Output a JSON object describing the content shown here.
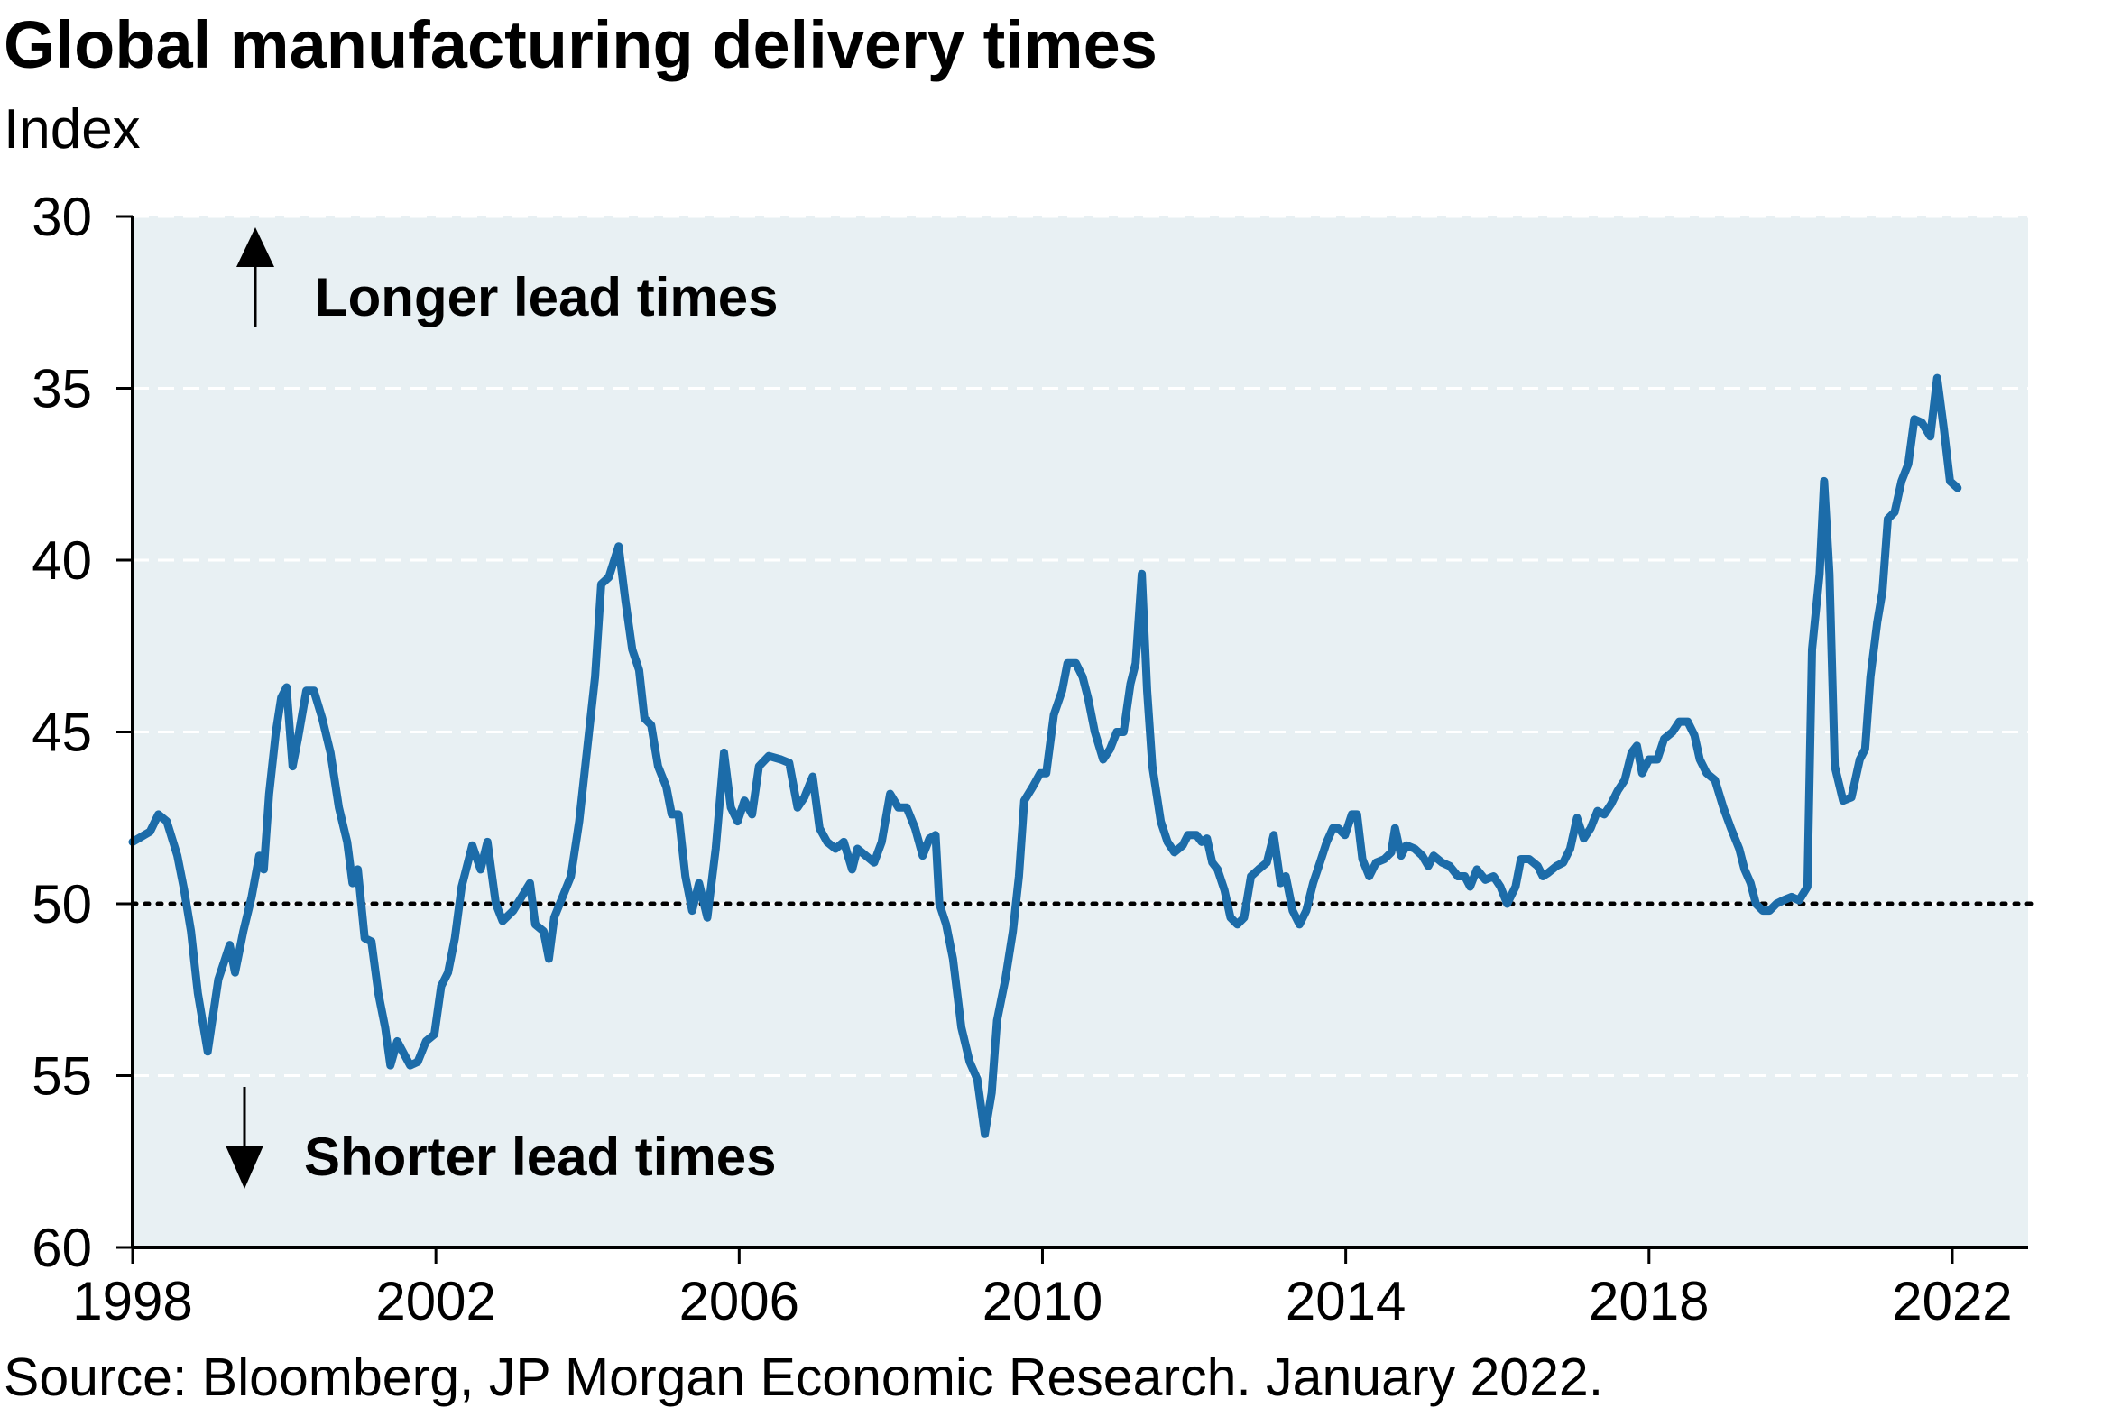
{
  "chart_data": {
    "type": "line",
    "title": "Global manufacturing delivery times",
    "subtitle": "Index",
    "source": "Source: Bloomberg, JP Morgan Economic Research. January 2022.",
    "annotations": [
      "Longer lead times",
      "Shorter lead times"
    ],
    "color": "#1c6ca9",
    "y_inverted": true,
    "grid": true,
    "reference_line": 50,
    "xlim": [
      1998,
      2023
    ],
    "xticks": [
      1998,
      2002,
      2006,
      2010,
      2014,
      2018,
      2022
    ],
    "ylim": [
      30,
      60
    ],
    "yticks": [
      30,
      35,
      40,
      45,
      50,
      55,
      60
    ],
    "x": [
      1998.0,
      1998.23,
      1998.34,
      1998.45,
      1998.59,
      1998.68,
      1998.77,
      1998.86,
      1998.99,
      1999.13,
      1999.28,
      1999.35,
      1999.46,
      1999.57,
      1999.67,
      1999.73,
      1999.8,
      1999.89,
      1999.96,
      2000.03,
      2000.11,
      2000.18,
      2000.29,
      2000.39,
      2000.5,
      2000.61,
      2000.72,
      2000.83,
      2000.9,
      2000.97,
      2001.06,
      2001.15,
      2001.24,
      2001.33,
      2001.4,
      2001.49,
      2001.66,
      2001.76,
      2001.87,
      2001.98,
      2002.07,
      2002.16,
      2002.25,
      2002.34,
      2002.48,
      2002.59,
      2002.68,
      2002.79,
      2002.88,
      2003.02,
      2003.13,
      2003.24,
      2003.31,
      2003.42,
      2003.49,
      2003.56,
      2003.67,
      2003.78,
      2003.89,
      2004.0,
      2004.1,
      2004.18,
      2004.28,
      2004.41,
      2004.5,
      2004.59,
      2004.68,
      2004.75,
      2004.84,
      2004.93,
      2005.04,
      2005.11,
      2005.2,
      2005.29,
      2005.38,
      2005.47,
      2005.58,
      2005.69,
      2005.8,
      2005.89,
      2005.98,
      2006.07,
      2006.17,
      2006.26,
      2006.39,
      2006.55,
      2006.66,
      2006.77,
      2006.86,
      2006.97,
      2007.06,
      2007.16,
      2007.27,
      2007.38,
      2007.49,
      2007.56,
      2007.67,
      2007.78,
      2007.88,
      2007.99,
      2008.1,
      2008.21,
      2008.32,
      2008.42,
      2008.51,
      2008.59,
      2008.64,
      2008.73,
      2008.82,
      2008.93,
      2009.04,
      2009.14,
      2009.24,
      2009.33,
      2009.4,
      2009.51,
      2009.61,
      2009.69,
      2009.76,
      2009.87,
      2009.97,
      2010.05,
      2010.15,
      2010.26,
      2010.33,
      2010.44,
      2010.53,
      2010.6,
      2010.69,
      2010.8,
      2010.89,
      2010.98,
      2011.07,
      2011.16,
      2011.23,
      2011.31,
      2011.38,
      2011.45,
      2011.56,
      2011.65,
      2011.74,
      2011.85,
      2011.92,
      2012.03,
      2012.1,
      2012.17,
      2012.24,
      2012.31,
      2012.4,
      2012.48,
      2012.57,
      2012.66,
      2012.75,
      2012.85,
      2012.96,
      2013.05,
      2013.14,
      2013.21,
      2013.3,
      2013.39,
      2013.48,
      2013.57,
      2013.66,
      2013.75,
      2013.83,
      2013.9,
      2013.99,
      2014.08,
      2014.15,
      2014.22,
      2014.31,
      2014.4,
      2014.51,
      2014.6,
      2014.65,
      2014.73,
      2014.8,
      2014.91,
      2015.01,
      2015.09,
      2015.16,
      2015.27,
      2015.37,
      2015.48,
      2015.57,
      2015.64,
      2015.73,
      2015.84,
      2015.95,
      2016.04,
      2016.13,
      2016.24,
      2016.31,
      2016.42,
      2016.53,
      2016.6,
      2016.67,
      2016.78,
      2016.87,
      2016.96,
      2017.05,
      2017.14,
      2017.23,
      2017.32,
      2017.41,
      2017.5,
      2017.59,
      2017.68,
      2017.77,
      2017.84,
      2017.91,
      2018.0,
      2018.11,
      2018.2,
      2018.31,
      2018.4,
      2018.51,
      2018.6,
      2018.67,
      2018.76,
      2018.87,
      2018.98,
      2019.08,
      2019.19,
      2019.26,
      2019.34,
      2019.41,
      2019.5,
      2019.59,
      2019.68,
      2019.77,
      2019.88,
      2019.98,
      2020.09,
      2020.15,
      2020.25,
      2020.31,
      2020.38,
      2020.45,
      2020.56,
      2020.67,
      2020.78,
      2020.85,
      2020.92,
      2021.01,
      2021.08,
      2021.15,
      2021.24,
      2021.33,
      2021.42,
      2021.5,
      2021.6,
      2021.71,
      2021.8,
      2021.89,
      2021.97,
      2022.07
    ],
    "values": [
      48.2,
      47.9,
      47.4,
      47.6,
      48.6,
      49.6,
      50.8,
      52.6,
      54.3,
      52.2,
      51.2,
      52.0,
      50.8,
      49.8,
      48.6,
      49.0,
      46.8,
      45.0,
      44.0,
      43.7,
      46.0,
      45.2,
      43.8,
      43.8,
      44.6,
      45.6,
      47.2,
      48.2,
      49.4,
      49.0,
      51.0,
      51.1,
      52.6,
      53.6,
      54.7,
      54.0,
      54.7,
      54.6,
      54.0,
      53.8,
      52.4,
      52.0,
      51.0,
      49.5,
      48.3,
      49.0,
      48.2,
      50.0,
      50.5,
      50.2,
      49.8,
      49.4,
      50.6,
      50.8,
      51.6,
      50.4,
      49.8,
      49.2,
      47.6,
      45.4,
      43.4,
      40.7,
      40.5,
      39.6,
      41.2,
      42.6,
      43.2,
      44.6,
      44.8,
      46.0,
      46.6,
      47.4,
      47.4,
      49.2,
      50.2,
      49.4,
      50.4,
      48.4,
      45.6,
      47.2,
      47.6,
      47.0,
      47.4,
      46.0,
      45.7,
      45.8,
      45.9,
      47.2,
      46.9,
      46.3,
      47.8,
      48.2,
      48.4,
      48.2,
      49.0,
      48.4,
      48.6,
      48.8,
      48.2,
      46.8,
      47.2,
      47.2,
      47.8,
      48.6,
      48.1,
      48.0,
      50.0,
      50.6,
      51.6,
      53.6,
      54.6,
      55.1,
      56.7,
      55.5,
      53.4,
      52.2,
      50.8,
      49.2,
      47.0,
      46.6,
      46.2,
      46.2,
      44.5,
      43.8,
      43.0,
      43.0,
      43.4,
      44.0,
      45.0,
      45.8,
      45.5,
      45.0,
      45.0,
      43.6,
      43.0,
      40.4,
      43.8,
      46.0,
      47.6,
      48.2,
      48.5,
      48.3,
      48.0,
      48.0,
      48.2,
      48.1,
      48.8,
      49.0,
      49.6,
      50.4,
      50.6,
      50.4,
      49.2,
      49.0,
      48.8,
      48.0,
      49.4,
      49.2,
      50.2,
      50.6,
      50.2,
      49.4,
      48.8,
      48.2,
      47.8,
      47.8,
      48.0,
      47.4,
      47.4,
      48.7,
      49.2,
      48.8,
      48.7,
      48.5,
      47.8,
      48.6,
      48.3,
      48.4,
      48.6,
      48.9,
      48.6,
      48.8,
      48.9,
      49.2,
      49.2,
      49.5,
      49.0,
      49.3,
      49.2,
      49.5,
      50.0,
      49.5,
      48.7,
      48.7,
      48.9,
      49.2,
      49.1,
      48.9,
      48.8,
      48.4,
      47.5,
      48.1,
      47.8,
      47.3,
      47.4,
      47.1,
      46.7,
      46.4,
      45.6,
      45.4,
      46.2,
      45.8,
      45.8,
      45.2,
      45.0,
      44.7,
      44.7,
      45.1,
      45.8,
      46.2,
      46.4,
      47.2,
      47.8,
      48.4,
      49.0,
      49.4,
      50.0,
      50.2,
      50.2,
      50.0,
      49.9,
      49.8,
      49.9,
      49.5,
      42.6,
      40.4,
      37.7,
      40.4,
      46.0,
      47.0,
      46.9,
      45.8,
      45.5,
      43.4,
      41.8,
      40.9,
      38.8,
      38.6,
      37.7,
      37.2,
      35.9,
      36.0,
      36.4,
      34.7,
      36.2,
      37.7,
      37.9
    ]
  }
}
